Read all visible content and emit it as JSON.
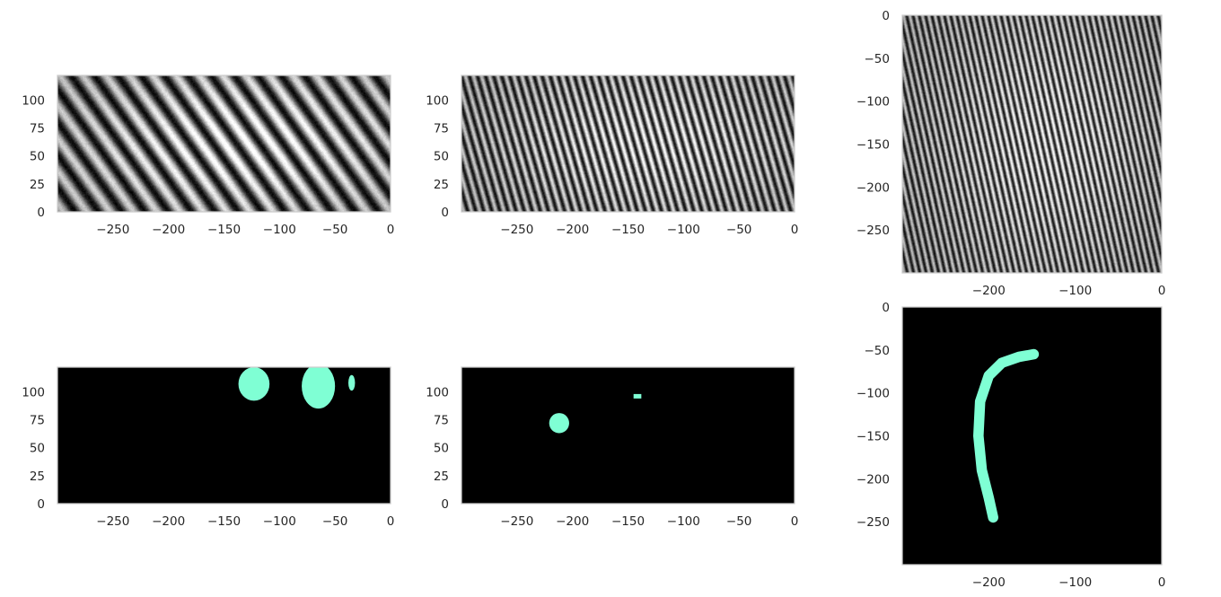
{
  "chart_data": [
    {
      "id": "top-left",
      "type": "heatmap",
      "content": "grayscale-stripes",
      "stripes": {
        "period": 26,
        "slope": 1.4,
        "contrast": 0.9
      },
      "xlim": [
        -300,
        0
      ],
      "ylim": [
        0,
        122
      ],
      "xticks": [
        -250,
        -200,
        -150,
        -100,
        -50,
        0
      ],
      "yticks": [
        0,
        25,
        50,
        75,
        100
      ],
      "xtick_labels": [
        "−250",
        "−200",
        "−150",
        "−100",
        "−50",
        "0"
      ],
      "ytick_labels": [
        "0",
        "25",
        "50",
        "75",
        "100"
      ],
      "grid": false
    },
    {
      "id": "top-middle",
      "type": "heatmap",
      "content": "grayscale-stripes",
      "stripes": {
        "period": 9,
        "slope": 3.5,
        "contrast": 0.85
      },
      "xlim": [
        -300,
        0
      ],
      "ylim": [
        0,
        122
      ],
      "xticks": [
        -250,
        -200,
        -150,
        -100,
        -50,
        0
      ],
      "yticks": [
        0,
        25,
        50,
        75,
        100
      ],
      "xtick_labels": [
        "−250",
        "−200",
        "−150",
        "−100",
        "−50",
        "0"
      ],
      "ytick_labels": [
        "0",
        "25",
        "50",
        "75",
        "100"
      ],
      "grid": false
    },
    {
      "id": "top-right",
      "type": "heatmap",
      "content": "grayscale-stripes",
      "stripes": {
        "period": 7,
        "slope": 4.5,
        "contrast": 0.85
      },
      "xlim": [
        -300,
        0
      ],
      "ylim": [
        -300,
        0
      ],
      "xticks": [
        -200,
        -100,
        0
      ],
      "yticks": [
        0,
        -50,
        -100,
        -150,
        -200,
        -250
      ],
      "xtick_labels": [
        "−200",
        "−100",
        "0"
      ],
      "ytick_labels": [
        "0",
        "−50",
        "−100",
        "−150",
        "−200",
        "−250"
      ],
      "grid": false
    },
    {
      "id": "bottom-left",
      "type": "heatmap",
      "content": "binary-mask",
      "mask_color": "#7fffd4",
      "background_color": "#000000",
      "regions": [
        {
          "shape": "ellipse",
          "cx": -123,
          "cy": 107,
          "rx": 14,
          "ry": 15
        },
        {
          "shape": "ellipse",
          "cx": -65,
          "cy": 105,
          "rx": 15,
          "ry": 20
        },
        {
          "shape": "ellipse",
          "cx": -35,
          "cy": 108,
          "rx": 3,
          "ry": 7
        }
      ],
      "xlim": [
        -300,
        0
      ],
      "ylim": [
        0,
        122
      ],
      "xticks": [
        -250,
        -200,
        -150,
        -100,
        -50,
        0
      ],
      "yticks": [
        0,
        25,
        50,
        75,
        100
      ],
      "xtick_labels": [
        "−250",
        "−200",
        "−150",
        "−100",
        "−50",
        "0"
      ],
      "ytick_labels": [
        "0",
        "25",
        "50",
        "75",
        "100"
      ],
      "grid": false
    },
    {
      "id": "bottom-middle",
      "type": "heatmap",
      "content": "binary-mask",
      "mask_color": "#7fffd4",
      "background_color": "#000000",
      "regions": [
        {
          "shape": "ellipse",
          "cx": -212,
          "cy": 72,
          "rx": 9,
          "ry": 9
        },
        {
          "shape": "rect",
          "x0": -145,
          "x1": -138,
          "y0": 94,
          "y1": 98
        }
      ],
      "xlim": [
        -300,
        0
      ],
      "ylim": [
        0,
        122
      ],
      "xticks": [
        -250,
        -200,
        -150,
        -100,
        -50,
        0
      ],
      "yticks": [
        0,
        25,
        50,
        75,
        100
      ],
      "xtick_labels": [
        "−250",
        "−200",
        "−150",
        "−100",
        "−50",
        "0"
      ],
      "ytick_labels": [
        "0",
        "25",
        "50",
        "75",
        "100"
      ],
      "grid": false
    },
    {
      "id": "bottom-right",
      "type": "heatmap",
      "content": "binary-mask",
      "mask_color": "#7fffd4",
      "background_color": "#000000",
      "regions": [
        {
          "shape": "stroke",
          "width": 12,
          "points": [
            [
              -148,
              -55
            ],
            [
              -165,
              -58
            ],
            [
              -185,
              -65
            ],
            [
              -200,
              -80
            ],
            [
              -210,
              -110
            ],
            [
              -212,
              -150
            ],
            [
              -208,
              -190
            ],
            [
              -200,
              -222
            ],
            [
              -195,
              -245
            ]
          ]
        }
      ],
      "xlim": [
        -300,
        0
      ],
      "ylim": [
        -300,
        0
      ],
      "xticks": [
        -200,
        -100,
        0
      ],
      "yticks": [
        0,
        -50,
        -100,
        -150,
        -200,
        -250
      ],
      "xtick_labels": [
        "−200",
        "−100",
        "0"
      ],
      "ytick_labels": [
        "0",
        "−50",
        "−100",
        "−150",
        "−200",
        "−250"
      ],
      "grid": false
    }
  ]
}
